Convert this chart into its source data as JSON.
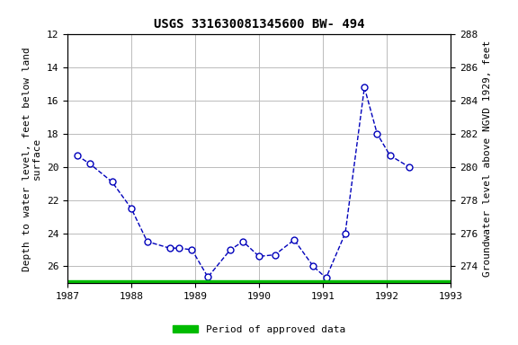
{
  "title": "USGS 331630081345600 BW- 494",
  "ylabel_left": "Depth to water level, feet below land\nsurface",
  "ylabel_right": "Groundwater level above NGVD 1929, feet",
  "x_values": [
    1987.15,
    1987.35,
    1987.7,
    1988.0,
    1988.25,
    1988.6,
    1988.75,
    1988.95,
    1989.2,
    1989.55,
    1989.75,
    1990.0,
    1990.25,
    1990.55,
    1990.85,
    1991.05,
    1991.35,
    1991.65,
    1991.85,
    1992.05,
    1992.35
  ],
  "y_values": [
    19.3,
    19.8,
    20.9,
    22.5,
    24.5,
    24.9,
    24.9,
    25.0,
    26.65,
    25.0,
    24.5,
    25.4,
    25.3,
    24.4,
    26.0,
    26.7,
    24.0,
    15.2,
    18.0,
    19.3,
    20.0
  ],
  "xlim": [
    1987,
    1993
  ],
  "ylim_left_top": 12,
  "ylim_left_bottom": 27,
  "ylim_right_top": 288,
  "ylim_right_bottom": 273,
  "xticks": [
    1987,
    1988,
    1989,
    1990,
    1991,
    1992,
    1993
  ],
  "yticks_left": [
    12,
    14,
    16,
    18,
    20,
    22,
    24,
    26
  ],
  "yticks_right": [
    288,
    286,
    284,
    282,
    280,
    278,
    276,
    274
  ],
  "line_color": "#0000bb",
  "marker_facecolor": "#ffffff",
  "marker_edgecolor": "#0000bb",
  "line_style": "--",
  "marker_style": "o",
  "marker_size": 5,
  "linewidth": 1.0,
  "grid_color": "#bbbbbb",
  "background_color": "#ffffff",
  "title_fontsize": 10,
  "axis_label_fontsize": 8,
  "tick_fontsize": 8,
  "legend_label": "Period of approved data",
  "legend_color": "#00bb00",
  "bar_x_start": 1987.0,
  "bar_x_end": 1993.0,
  "font_family": "monospace"
}
